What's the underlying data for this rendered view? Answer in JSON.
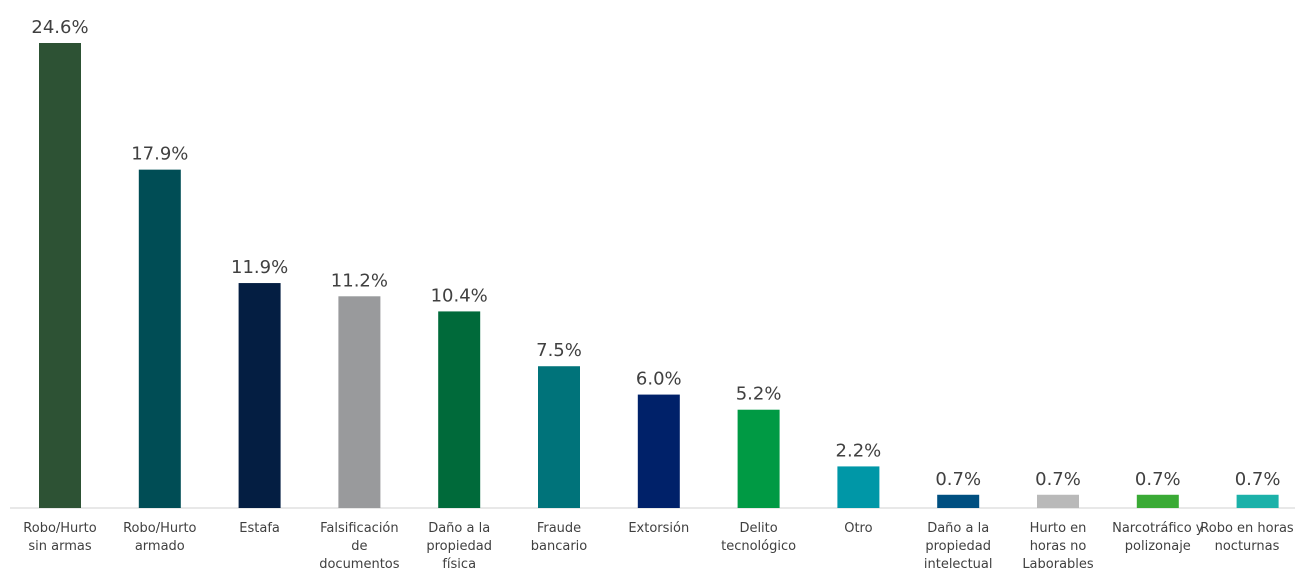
{
  "chart_data": {
    "type": "bar",
    "categories": [
      "Robo/Hurto sin armas",
      "Robo/Hurto armado",
      "Estafa",
      "Falsificación de documentos",
      "Daño a la propiedad física",
      "Fraude bancario",
      "Extorsión",
      "Delito tecnológico",
      "Otro",
      "Daño a la propiedad intelectual",
      "Hurto en horas no Laborables",
      "Narcotráfico y polizonaje",
      "Robo en horas nocturnas"
    ],
    "values": [
      24.6,
      17.9,
      11.9,
      11.2,
      10.4,
      7.5,
      6.0,
      5.2,
      2.2,
      0.7,
      0.7,
      0.7,
      0.7
    ],
    "value_labels": [
      "24.6%",
      "17.9%",
      "11.9%",
      "11.2%",
      "10.4%",
      "7.5%",
      "6.0%",
      "5.2%",
      "2.2%",
      "0.7%",
      "0.7%",
      "0.7%",
      "0.7%"
    ],
    "colors": [
      "#2d5234",
      "#004d55",
      "#041e42",
      "#999a9c",
      "#006a3a",
      "#00737a",
      "#002169",
      "#009a44",
      "#0097a7",
      "#004f80",
      "#b9b9b9",
      "#3aaa35",
      "#1cb1a9"
    ]
  }
}
